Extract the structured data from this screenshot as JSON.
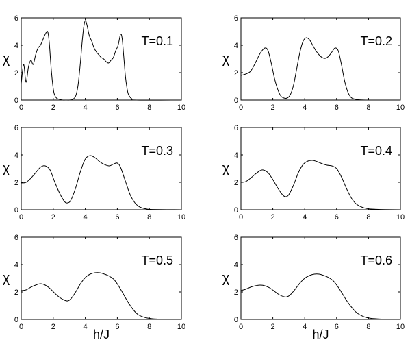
{
  "chart_data": [
    {
      "type": "line",
      "annotation": "T=0.1",
      "ylabel": "χ",
      "xlabel": "",
      "xlim": [
        0,
        10
      ],
      "ylim": [
        0,
        6
      ],
      "xticks": [
        "0",
        "2",
        "4",
        "6",
        "8",
        "10"
      ],
      "yticks": [
        "0",
        "2",
        "4",
        "6"
      ],
      "grid": false,
      "series": [
        {
          "x": [
            0,
            0.15,
            0.3,
            0.45,
            0.6,
            0.75,
            0.9,
            1.05,
            1.2,
            1.35,
            1.5,
            1.65,
            1.75,
            1.85,
            1.95,
            2.05,
            2.2,
            2.4,
            2.6,
            2.8,
            3.0,
            3.2,
            3.4,
            3.55,
            3.7,
            3.8,
            3.9,
            4.0,
            4.1,
            4.25,
            4.4,
            4.55,
            4.7,
            4.85,
            5.0,
            5.15,
            5.3,
            5.45,
            5.6,
            5.75,
            5.9,
            6.05,
            6.2,
            6.3,
            6.4,
            6.5,
            6.6,
            6.7,
            6.9,
            7.2,
            10
          ],
          "y": [
            1.2,
            2.6,
            1.3,
            2.4,
            2.9,
            2.6,
            3.3,
            3.8,
            4.0,
            4.4,
            4.8,
            5.0,
            4.2,
            2.6,
            1.3,
            0.5,
            0.15,
            0.05,
            0,
            0,
            0,
            0.05,
            0.3,
            1.1,
            2.8,
            4.2,
            5.3,
            5.8,
            5.5,
            4.7,
            4.3,
            3.8,
            3.5,
            3.3,
            3.1,
            3.0,
            2.8,
            2.7,
            2.9,
            3.1,
            3.6,
            4.0,
            4.8,
            4.5,
            3.2,
            1.8,
            0.9,
            0.4,
            0.1,
            0,
            0
          ]
        }
      ]
    },
    {
      "type": "line",
      "annotation": "T=0.2",
      "ylabel": "χ",
      "xlabel": "",
      "xlim": [
        0,
        10
      ],
      "ylim": [
        0,
        6
      ],
      "xticks": [
        "0",
        "2",
        "4",
        "6",
        "8",
        "10"
      ],
      "yticks": [
        "0",
        "2",
        "4",
        "6"
      ],
      "grid": false,
      "series": [
        {
          "x": [
            0,
            0.3,
            0.6,
            0.9,
            1.2,
            1.5,
            1.7,
            1.9,
            2.1,
            2.3,
            2.5,
            2.7,
            2.9,
            3.1,
            3.3,
            3.5,
            3.7,
            3.9,
            4.1,
            4.3,
            4.5,
            4.7,
            4.9,
            5.1,
            5.3,
            5.5,
            5.7,
            5.9,
            6.1,
            6.3,
            6.5,
            6.7,
            6.9,
            7.1,
            7.4,
            8,
            10
          ],
          "y": [
            1.8,
            1.9,
            2.1,
            2.7,
            3.4,
            3.8,
            3.6,
            2.7,
            1.6,
            0.8,
            0.3,
            0.15,
            0.15,
            0.4,
            1.1,
            2.3,
            3.5,
            4.3,
            4.55,
            4.4,
            4.0,
            3.6,
            3.3,
            3.1,
            3.05,
            3.2,
            3.5,
            3.8,
            3.6,
            2.6,
            1.4,
            0.6,
            0.2,
            0.08,
            0.02,
            0,
            0
          ]
        }
      ]
    },
    {
      "type": "line",
      "annotation": "T=0.3",
      "ylabel": "χ",
      "xlabel": "",
      "xlim": [
        0,
        10
      ],
      "ylim": [
        0,
        6
      ],
      "xticks": [
        "0",
        "2",
        "4",
        "6",
        "8",
        "10"
      ],
      "yticks": [
        "0",
        "2",
        "4",
        "6"
      ],
      "grid": false,
      "series": [
        {
          "x": [
            0,
            0.3,
            0.6,
            0.9,
            1.2,
            1.5,
            1.8,
            2.1,
            2.4,
            2.7,
            2.9,
            3.1,
            3.4,
            3.7,
            4.0,
            4.3,
            4.6,
            4.9,
            5.2,
            5.5,
            5.8,
            6.0,
            6.2,
            6.5,
            6.8,
            7.1,
            7.4,
            7.8,
            8.2,
            10
          ],
          "y": [
            1.95,
            2.0,
            2.3,
            2.7,
            3.1,
            3.2,
            2.9,
            2.0,
            1.2,
            0.6,
            0.5,
            0.7,
            1.6,
            2.8,
            3.7,
            3.95,
            3.8,
            3.5,
            3.3,
            3.2,
            3.35,
            3.4,
            3.1,
            2.1,
            1.1,
            0.5,
            0.2,
            0.06,
            0.02,
            0
          ]
        }
      ]
    },
    {
      "type": "line",
      "annotation": "T=0.4",
      "ylabel": "χ",
      "xlabel": "",
      "xlim": [
        0,
        10
      ],
      "ylim": [
        0,
        6
      ],
      "xticks": [
        "0",
        "2",
        "4",
        "6",
        "8",
        "10"
      ],
      "yticks": [
        "0",
        "2",
        "4",
        "6"
      ],
      "grid": false,
      "series": [
        {
          "x": [
            0,
            0.3,
            0.6,
            0.9,
            1.2,
            1.4,
            1.7,
            2.0,
            2.3,
            2.6,
            2.8,
            3.0,
            3.3,
            3.6,
            3.9,
            4.2,
            4.5,
            4.8,
            5.1,
            5.4,
            5.7,
            6.0,
            6.3,
            6.6,
            6.9,
            7.2,
            7.6,
            8.0,
            8.5,
            9.0,
            10
          ],
          "y": [
            2.0,
            2.05,
            2.3,
            2.6,
            2.85,
            2.9,
            2.7,
            2.2,
            1.6,
            1.1,
            0.95,
            1.1,
            1.8,
            2.7,
            3.3,
            3.55,
            3.6,
            3.5,
            3.35,
            3.25,
            3.2,
            3.0,
            2.4,
            1.6,
            0.9,
            0.45,
            0.18,
            0.07,
            0.03,
            0.01,
            0
          ]
        }
      ]
    },
    {
      "type": "line",
      "annotation": "T=0.5",
      "ylabel": "χ",
      "xlabel": "",
      "xlim": [
        0,
        10
      ],
      "ylim": [
        0,
        6
      ],
      "xticks": [
        "0",
        "2",
        "4",
        "6",
        "8",
        "10"
      ],
      "yticks": [
        "0",
        "2",
        "4",
        "6"
      ],
      "grid": false,
      "series": [
        {
          "x": [
            0,
            0.3,
            0.6,
            0.9,
            1.2,
            1.5,
            1.8,
            2.1,
            2.4,
            2.7,
            2.9,
            3.1,
            3.4,
            3.7,
            4.0,
            4.3,
            4.6,
            4.9,
            5.2,
            5.5,
            5.8,
            6.1,
            6.4,
            6.7,
            7.0,
            7.3,
            7.7,
            8.1,
            8.6,
            9.2,
            10
          ],
          "y": [
            2.1,
            2.15,
            2.35,
            2.5,
            2.6,
            2.5,
            2.25,
            1.9,
            1.6,
            1.4,
            1.35,
            1.5,
            2.0,
            2.6,
            3.05,
            3.3,
            3.4,
            3.4,
            3.3,
            3.15,
            2.9,
            2.4,
            1.8,
            1.2,
            0.7,
            0.35,
            0.15,
            0.06,
            0.02,
            0.01,
            0
          ]
        }
      ]
    },
    {
      "type": "line",
      "annotation": "T=0.6",
      "ylabel": "χ",
      "xlabel": "",
      "xlim": [
        0,
        10
      ],
      "ylim": [
        0,
        6
      ],
      "xticks": [
        "0",
        "2",
        "4",
        "6",
        "8",
        "10"
      ],
      "yticks": [
        "0",
        "2",
        "4",
        "6"
      ],
      "grid": false,
      "series": [
        {
          "x": [
            0,
            0.3,
            0.6,
            0.9,
            1.2,
            1.5,
            1.8,
            2.1,
            2.4,
            2.7,
            2.9,
            3.1,
            3.4,
            3.7,
            4.0,
            4.3,
            4.6,
            4.9,
            5.2,
            5.5,
            5.8,
            6.1,
            6.4,
            6.7,
            7.0,
            7.3,
            7.7,
            8.1,
            8.6,
            9.2,
            10
          ],
          "y": [
            2.1,
            2.2,
            2.35,
            2.45,
            2.5,
            2.45,
            2.3,
            2.05,
            1.8,
            1.65,
            1.65,
            1.8,
            2.2,
            2.65,
            3.0,
            3.2,
            3.3,
            3.3,
            3.2,
            3.05,
            2.8,
            2.35,
            1.8,
            1.25,
            0.8,
            0.45,
            0.2,
            0.09,
            0.04,
            0.01,
            0
          ]
        }
      ]
    }
  ],
  "figure": {
    "xlabel": "h/J"
  }
}
